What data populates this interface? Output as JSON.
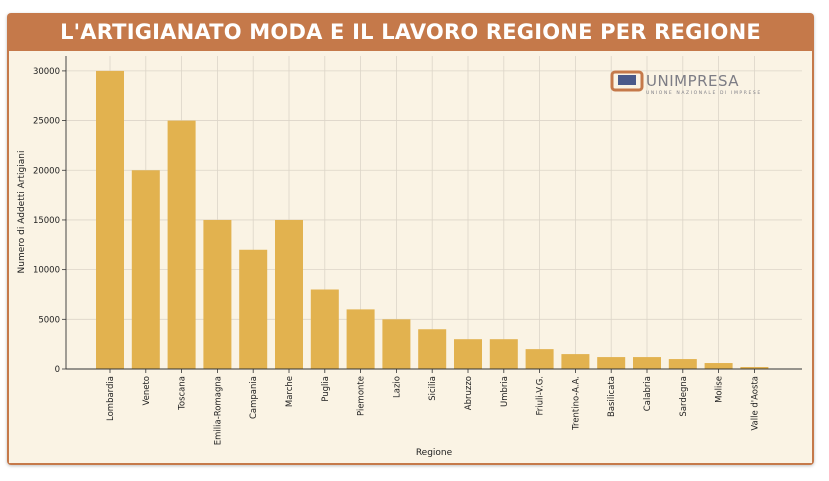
{
  "title": "L'ARTIGIANATO MODA E IL LAVORO REGIONE PER REGIONE",
  "logo": {
    "name": "UNIMPRESA",
    "tagline": "UNIONE NAZIONALE DI IMPRESE"
  },
  "colors": {
    "frame": "#c5794a",
    "panel": "#faf3e4",
    "bar": "#e2b24f",
    "grid": "#dcd5c8"
  },
  "chart_data": {
    "type": "bar",
    "title": "L'ARTIGIANATO MODA E IL LAVORO REGIONE PER REGIONE",
    "xlabel": "Regione",
    "ylabel": "Numero di Addetti Artigiani",
    "ylim": [
      0,
      31500
    ],
    "yticks": [
      0,
      5000,
      10000,
      15000,
      20000,
      25000,
      30000
    ],
    "grid": true,
    "categories": [
      "Lombardia",
      "Veneto",
      "Toscana",
      "Emilia-Romagna",
      "Campania",
      "Marche",
      "Puglia",
      "Piemonte",
      "Lazio",
      "Sicilia",
      "Abruzzo",
      "Umbria",
      "Friuli-V.G.",
      "Trentino-A.A.",
      "Basilicata",
      "Calabria",
      "Sardegna",
      "Molise",
      "Valle d'Aosta"
    ],
    "values": [
      30000,
      20000,
      25000,
      15000,
      12000,
      15000,
      8000,
      6000,
      5000,
      4000,
      3000,
      3000,
      2000,
      1500,
      1200,
      1200,
      1000,
      600,
      200
    ]
  }
}
